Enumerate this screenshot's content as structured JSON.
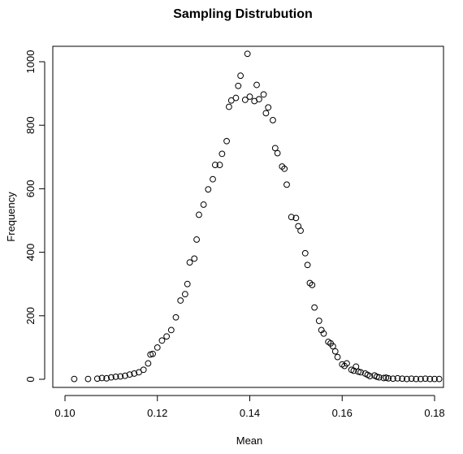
{
  "chart_data": {
    "type": "scatter",
    "title": "Sampling Distrubution",
    "xlabel": "Mean",
    "ylabel": "Frequency",
    "xlim": [
      0.1,
      0.182
    ],
    "ylim": [
      -5,
      1035
    ],
    "xticks": [
      0.1,
      0.12,
      0.14,
      0.16,
      0.18
    ],
    "xtick_labels": [
      "0.10",
      "0.12",
      "0.14",
      "0.16",
      "0.18"
    ],
    "yticks": [
      0,
      200,
      400,
      600,
      800,
      1000
    ],
    "ytick_labels": [
      "0",
      "200",
      "400",
      "600",
      "800",
      "1000"
    ],
    "grid": false,
    "marker": "open-circle",
    "series": [
      {
        "x": [
          0.102,
          0.105,
          0.107,
          0.108,
          0.109,
          0.11,
          0.111,
          0.112,
          0.113,
          0.114,
          0.115,
          0.116,
          0.117,
          0.118,
          0.1185,
          0.119,
          0.12,
          0.121,
          0.122,
          0.123,
          0.124,
          0.125,
          0.126,
          0.1265,
          0.127,
          0.128,
          0.1285,
          0.129,
          0.13,
          0.131,
          0.132,
          0.1325,
          0.1335,
          0.134,
          0.135,
          0.1355,
          0.136,
          0.137,
          0.1375,
          0.138,
          0.139,
          0.1395,
          0.14,
          0.141,
          0.1415,
          0.142,
          0.143,
          0.1435,
          0.144,
          0.145,
          0.1455,
          0.146,
          0.147,
          0.1475,
          0.148,
          0.149,
          0.15,
          0.1505,
          0.151,
          0.152,
          0.1525,
          0.153,
          0.1535,
          0.154,
          0.155,
          0.1555,
          0.156,
          0.157,
          0.1575,
          0.158,
          0.1585,
          0.159,
          0.16,
          0.1605,
          0.161,
          0.162,
          0.1625,
          0.163,
          0.1635,
          0.164,
          0.165,
          0.1655,
          0.166,
          0.167,
          0.1675,
          0.168,
          0.169,
          0.1695,
          0.17,
          0.171,
          0.172,
          0.173,
          0.174,
          0.175,
          0.176,
          0.177,
          0.178,
          0.179,
          0.18,
          0.181
        ],
        "y": [
          1,
          1,
          2,
          4,
          3,
          6,
          8,
          9,
          11,
          15,
          18,
          22,
          30,
          50,
          78,
          80,
          100,
          122,
          135,
          155,
          195,
          248,
          268,
          300,
          368,
          380,
          440,
          518,
          550,
          598,
          630,
          675,
          675,
          710,
          750,
          858,
          878,
          886,
          924,
          956,
          880,
          1025,
          890,
          876,
          927,
          882,
          897,
          838,
          856,
          816,
          728,
          712,
          670,
          663,
          613,
          511,
          508,
          482,
          468,
          397,
          360,
          303,
          297,
          226,
          184,
          155,
          144,
          118,
          113,
          104,
          88,
          70,
          47,
          42,
          50,
          30,
          27,
          40,
          24,
          22,
          18,
          14,
          10,
          12,
          8,
          6,
          4,
          5,
          3,
          2,
          3,
          2,
          1,
          2,
          1,
          1,
          2,
          1,
          1,
          1
        ]
      }
    ]
  }
}
